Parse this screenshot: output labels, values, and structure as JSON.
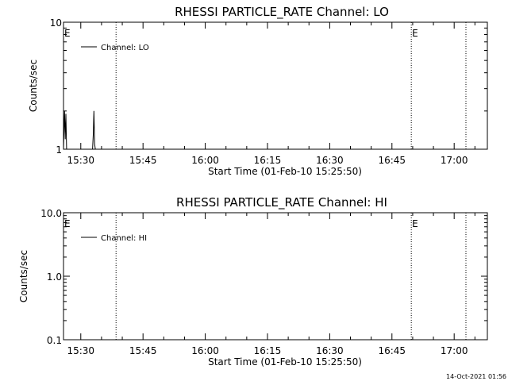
{
  "footer": {
    "timestamp": "14-Oct-2021 01:56"
  },
  "chart_data": [
    {
      "type": "line",
      "title": "RHESSI PARTICLE_RATE Channel: LO",
      "xlabel": "Start Time (01-Feb-10 15:25:50)",
      "ylabel": "Counts/sec",
      "y_scale": "log",
      "ylim": [
        1,
        10
      ],
      "y_ticks": [
        {
          "value": 1,
          "label": "1"
        },
        {
          "value": 10,
          "label": "10"
        }
      ],
      "xlim": [
        "15:25:50",
        "17:08:00"
      ],
      "x_ticks": [
        "15:30",
        "15:45",
        "16:00",
        "16:15",
        "16:30",
        "16:45",
        "17:00"
      ],
      "vlines": [
        "15:38:30",
        "16:49:40",
        "17:02:50"
      ],
      "markers": [
        {
          "time": "15:25:50",
          "label": "E"
        },
        {
          "time": "16:49:40",
          "label": "E"
        }
      ],
      "legend": {
        "position": "top-left"
      },
      "series": [
        {
          "name": "Channel: LO",
          "points": [
            [
              "15:25:50",
              1
            ],
            [
              "15:26:05",
              2
            ],
            [
              "15:26:15",
              1.2
            ],
            [
              "15:26:25",
              1.9
            ],
            [
              "15:26:35",
              1
            ],
            [
              "15:32:50",
              1
            ],
            [
              "15:33:00",
              1.3
            ],
            [
              "15:33:10",
              2
            ],
            [
              "15:33:20",
              1.1
            ],
            [
              "15:33:30",
              1
            ]
          ]
        }
      ]
    },
    {
      "type": "line",
      "title": "RHESSI PARTICLE_RATE Channel: HI",
      "xlabel": "Start Time (01-Feb-10 15:25:50)",
      "ylabel": "Counts/sec",
      "y_scale": "log",
      "ylim": [
        0.1,
        10
      ],
      "y_ticks": [
        {
          "value": 0.1,
          "label": "0.1"
        },
        {
          "value": 1,
          "label": "1.0"
        },
        {
          "value": 10,
          "label": "10.0"
        }
      ],
      "xlim": [
        "15:25:50",
        "17:08:00"
      ],
      "x_ticks": [
        "15:30",
        "15:45",
        "16:00",
        "16:15",
        "16:30",
        "16:45",
        "17:00"
      ],
      "vlines": [
        "15:38:30",
        "16:49:40",
        "17:02:50"
      ],
      "markers": [
        {
          "time": "15:25:50",
          "label": "E"
        },
        {
          "time": "16:49:40",
          "label": "E"
        }
      ],
      "legend": {
        "position": "top-left"
      },
      "series": [
        {
          "name": "Channel: HI",
          "points": []
        }
      ]
    }
  ]
}
